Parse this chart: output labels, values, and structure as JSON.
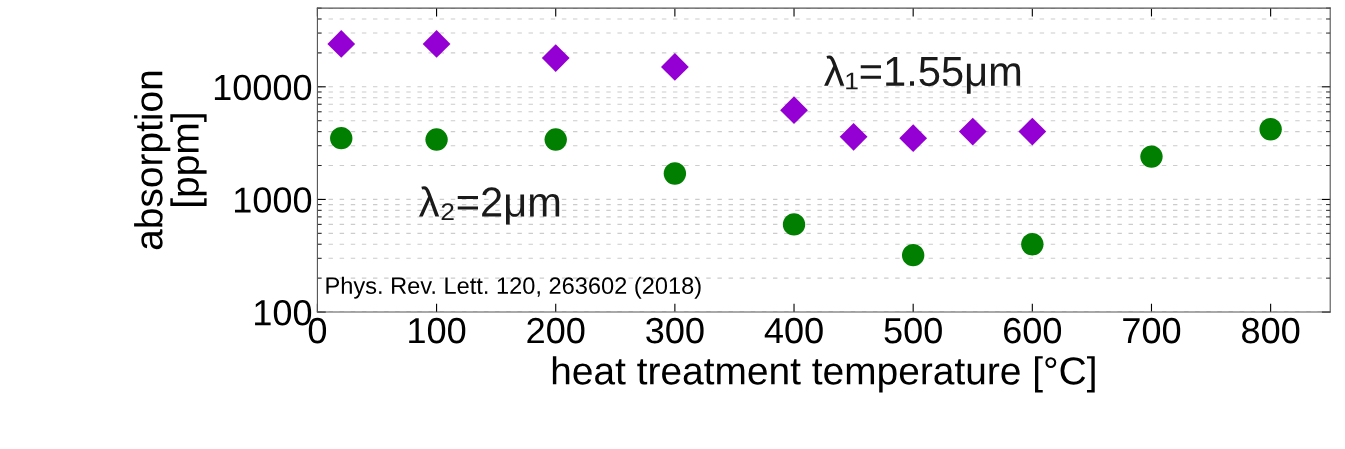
{
  "chart_data": {
    "type": "scatter",
    "xlabel": "heat treatment temperature [°C]",
    "ylabel": "absorption\n[ppm]",
    "log": "y",
    "xlim": [
      0,
      850
    ],
    "ylim": [
      100,
      50000
    ],
    "xticks": [
      0,
      100,
      200,
      300,
      400,
      500,
      600,
      700,
      800
    ],
    "yticks": [
      100,
      1000,
      10000
    ],
    "grid": "y",
    "annotations": [
      "Phys. Rev. Lett. 120, 263602 (2018)"
    ],
    "series": [
      {
        "name": "λ₁=1.55μm",
        "color": "#9400d3",
        "marker": "diamond",
        "x": [
          20,
          100,
          200,
          300,
          400,
          450,
          500,
          550,
          600
        ],
        "values": [
          24000,
          24000,
          18000,
          15000,
          6200,
          3600,
          3500,
          4000,
          4000
        ]
      },
      {
        "name": "λ₂=2μm",
        "color": "#007f00",
        "marker": "circle",
        "x": [
          20,
          100,
          200,
          300,
          400,
          500,
          600,
          700,
          800
        ],
        "values": [
          3500,
          3400,
          3400,
          1700,
          600,
          320,
          400,
          2400,
          4200
        ]
      }
    ]
  }
}
